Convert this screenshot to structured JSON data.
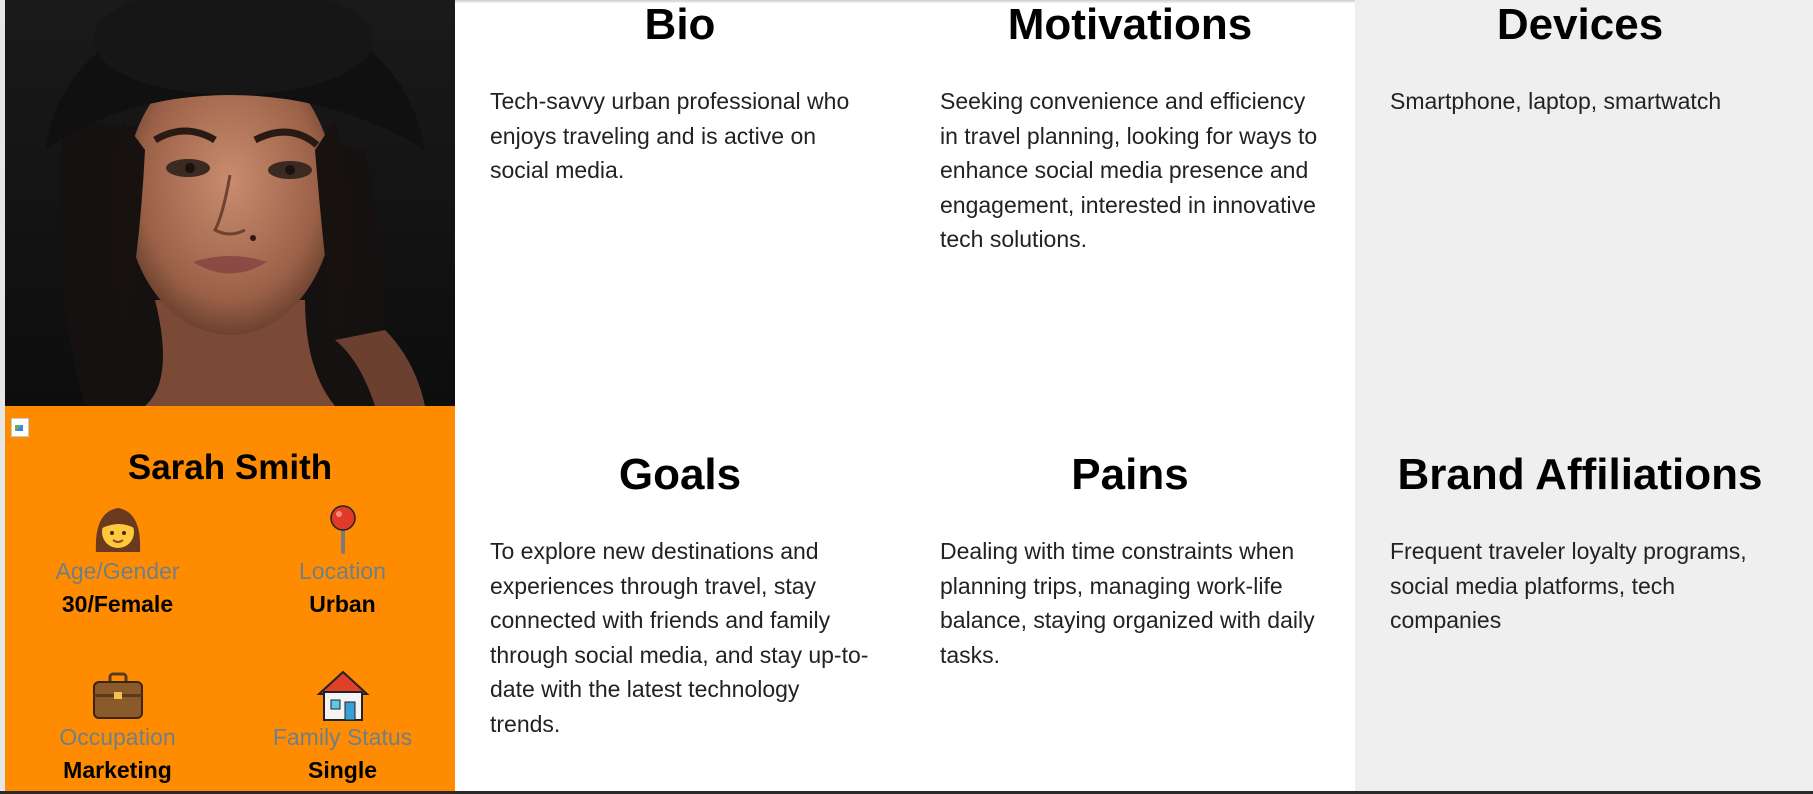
{
  "profile": {
    "name": "Sarah Smith",
    "stats": [
      {
        "icon": "woman-icon",
        "label": "Age/Gender",
        "value": "30/Female"
      },
      {
        "icon": "pushpin-icon",
        "label": "Location",
        "value": "Urban"
      },
      {
        "icon": "briefcase-icon",
        "label": "Occupation",
        "value": "Marketing"
      },
      {
        "icon": "house-icon",
        "label": "Family Status",
        "value": "Single"
      }
    ]
  },
  "sections": {
    "bio": {
      "title": "Bio",
      "text": "Tech-savvy urban professional who enjoys traveling and is active on social media."
    },
    "motivations": {
      "title": "Motivations",
      "text": "Seeking convenience and efficiency in travel planning, looking for ways to enhance social media presence and engagement, interested in innovative tech solutions."
    },
    "devices": {
      "title": "Devices",
      "text": "Smartphone, laptop, smartwatch"
    },
    "goals": {
      "title": "Goals",
      "text": "To explore new destinations and experiences through travel, stay connected with friends and family through social media, and stay up-to-date with the latest technology trends."
    },
    "pains": {
      "title": "Pains",
      "text": "Dealing with time constraints when planning trips, managing work-life balance, staying organized with daily tasks."
    },
    "brands": {
      "title": "Brand Affiliations",
      "text": "Frequent traveler loyalty programs, social media platforms, tech companies"
    }
  },
  "colors": {
    "card": "#ff8c00",
    "grey_column": "#efefef",
    "label": "#6e7f8a"
  }
}
